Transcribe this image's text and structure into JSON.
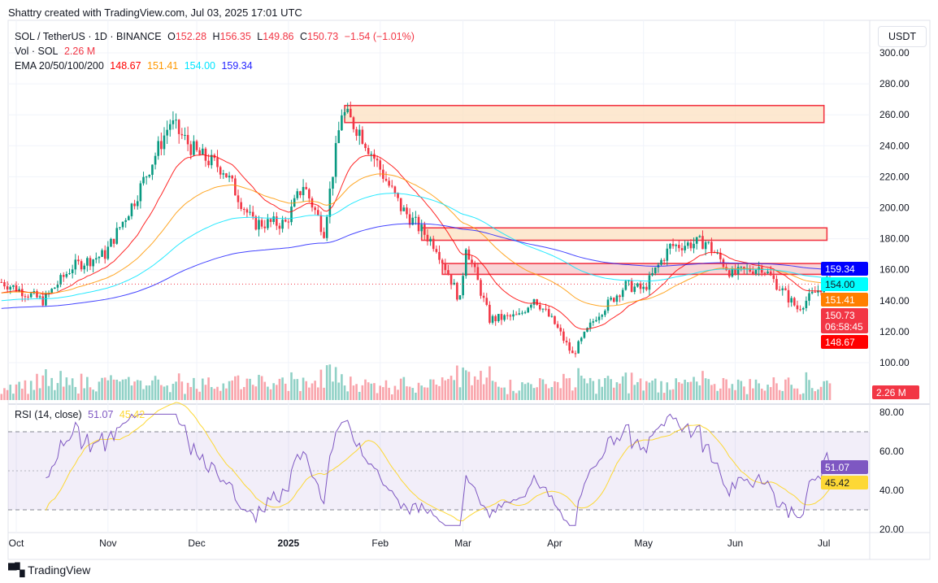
{
  "credit": "Shattry created with TradingView.com, Jul 03, 2025 17:01 UTC",
  "legend": {
    "symbol": "SOL / TetherUS · 1D · BINANCE",
    "o_label": "O",
    "o": "152.28",
    "h_label": "H",
    "h": "156.35",
    "l_label": "L",
    "l": "149.86",
    "c_label": "C",
    "c": "150.73",
    "change": "−1.54 (−1.01%)",
    "vol_label": "Vol · SOL",
    "vol": "2.26 M",
    "ema_label": "EMA 20/50/100/200",
    "ema20": "148.67",
    "ema50": "151.41",
    "ema100": "154.00",
    "ema200": "159.34"
  },
  "currency_button": "USDT",
  "rsi": {
    "label": "RSI (14, close)",
    "value": "51.07",
    "ma": "45.42"
  },
  "colors": {
    "up": "#089981",
    "down": "#f23645",
    "ema20": "#ff0000",
    "ema50": "#ff9800",
    "ema100": "#00e5ff",
    "ema200": "#2424ff",
    "rsi": "#7e57c2",
    "rsi_ma": "#fdd835"
  },
  "price_tags": [
    {
      "text": "159.34",
      "sub": "",
      "price": 159.34,
      "bg": "#0000ff",
      "fg": "#ffffff"
    },
    {
      "text": "154.00",
      "sub": "",
      "price": 154.0,
      "bg": "#00ffff",
      "fg": "#131722"
    },
    {
      "text": "151.41",
      "sub": "",
      "price": 151.41,
      "bg": "#ff7f00",
      "fg": "#ffffff"
    },
    {
      "text": "150.73",
      "sub": "06:58:45",
      "price": 150.73,
      "bg": "#f23645",
      "fg": "#ffffff"
    },
    {
      "text": "148.67",
      "sub": "",
      "price": 148.67,
      "bg": "#ff0000",
      "fg": "#ffffff"
    }
  ],
  "volume_tag": "2.26 M",
  "rsi_tags": [
    {
      "text": "51.07",
      "value": 51.07,
      "bg": "#7e57c2",
      "fg": "#ffffff"
    },
    {
      "text": "45.42",
      "value": 45.42,
      "bg": "#fdd835",
      "fg": "#131722"
    }
  ],
  "footer": "TradingView",
  "chart_data": {
    "type": "candlestick",
    "symbol": "SOL / TetherUS",
    "interval": "1D",
    "y_ticks": [
      "100.00",
      "120.00",
      "140.00",
      "160.00",
      "180.00",
      "200.00",
      "220.00",
      "240.00",
      "260.00",
      "280.00",
      "300.00"
    ],
    "ylim": [
      90,
      305
    ],
    "x_ticks": [
      {
        "label": "Oct",
        "date": "2024-10-01"
      },
      {
        "label": "Nov",
        "date": "2024-11-01"
      },
      {
        "label": "Dec",
        "date": "2024-12-01"
      },
      {
        "label": "2025",
        "date": "2025-01-01"
      },
      {
        "label": "Feb",
        "date": "2025-02-01"
      },
      {
        "label": "Mar",
        "date": "2025-03-01"
      },
      {
        "label": "Apr",
        "date": "2025-04-01"
      },
      {
        "label": "May",
        "date": "2025-05-01"
      },
      {
        "label": "Jun",
        "date": "2025-06-01"
      },
      {
        "label": "Jul",
        "date": "2025-07-01"
      }
    ],
    "approx_closes": [
      [
        "2024-09-26",
        152
      ],
      [
        "2024-10-01",
        148
      ],
      [
        "2024-10-10",
        140
      ],
      [
        "2024-10-20",
        162
      ],
      [
        "2024-10-31",
        170
      ],
      [
        "2024-11-10",
        205
      ],
      [
        "2024-11-22",
        255
      ],
      [
        "2024-12-01",
        235
      ],
      [
        "2024-12-10",
        225
      ],
      [
        "2024-12-20",
        190
      ],
      [
        "2024-12-31",
        190
      ],
      [
        "2025-01-06",
        215
      ],
      [
        "2025-01-13",
        185
      ],
      [
        "2025-01-19",
        262
      ],
      [
        "2025-01-25",
        250
      ],
      [
        "2025-02-01",
        225
      ],
      [
        "2025-02-08",
        200
      ],
      [
        "2025-02-20",
        175
      ],
      [
        "2025-02-28",
        140
      ],
      [
        "2025-03-02",
        176
      ],
      [
        "2025-03-10",
        128
      ],
      [
        "2025-03-20",
        130
      ],
      [
        "2025-03-25",
        142
      ],
      [
        "2025-04-01",
        125
      ],
      [
        "2025-04-07",
        105
      ],
      [
        "2025-04-15",
        130
      ],
      [
        "2025-04-25",
        150
      ],
      [
        "2025-05-01",
        147
      ],
      [
        "2025-05-10",
        175
      ],
      [
        "2025-05-22",
        178
      ],
      [
        "2025-05-31",
        157
      ],
      [
        "2025-06-10",
        162
      ],
      [
        "2025-06-22",
        135
      ],
      [
        "2025-07-02",
        152
      ]
    ],
    "last_candle": {
      "date": "2025-07-03",
      "open": 152.28,
      "high": 156.35,
      "low": 149.86,
      "close": 150.73,
      "volume": "2.26M"
    },
    "ema": {
      "20": 148.67,
      "50": 151.41,
      "100": 154.0,
      "200": 159.34
    },
    "zones": [
      {
        "from": "2025-01-20",
        "to": "2025-07-01",
        "low": 255,
        "high": 266
      },
      {
        "from": "2025-02-15",
        "to": "2025-07-02",
        "low": 179,
        "high": 187
      },
      {
        "from": "2025-02-22",
        "to": "2025-07-05",
        "low": 157,
        "high": 164
      }
    ],
    "rsi": {
      "period": 14,
      "value": 51.07,
      "ma": 45.42,
      "y_ticks": [
        "20.00",
        "40.00",
        "60.00",
        "80.00"
      ],
      "bands": [
        30,
        50,
        70
      ]
    }
  }
}
